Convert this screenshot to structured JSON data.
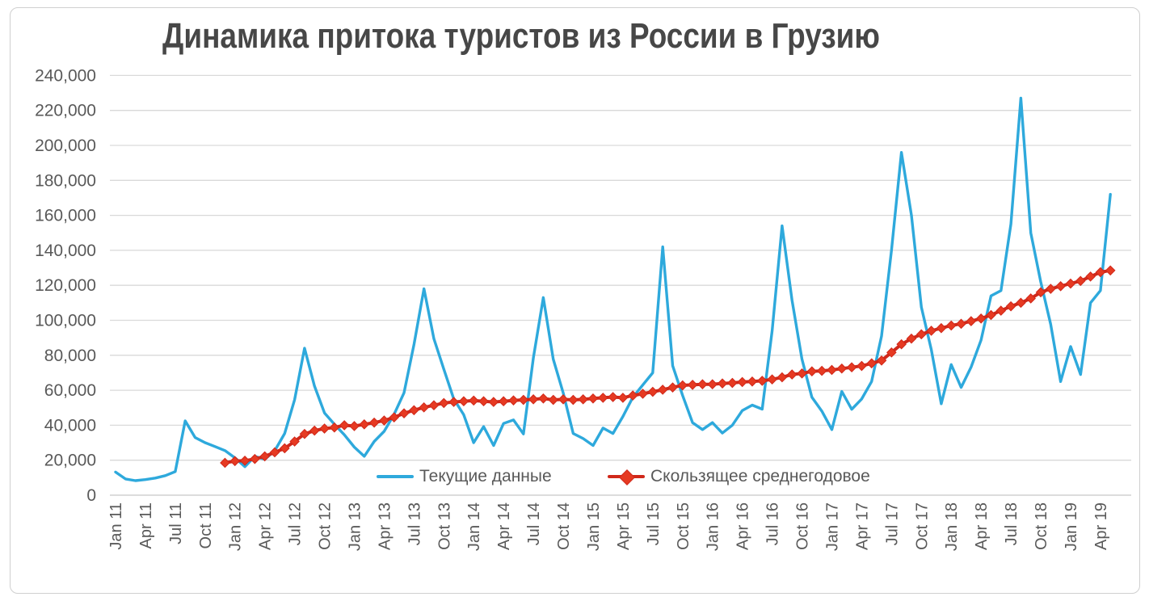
{
  "title": "Динамика притока туристов из России в Грузию",
  "chart_data": {
    "type": "line",
    "x_start": "Jan 2011",
    "x_end": "May 2019",
    "axis": {
      "y_ticks": [
        0,
        20000,
        40000,
        60000,
        80000,
        100000,
        120000,
        140000,
        160000,
        180000,
        200000,
        220000,
        240000
      ],
      "ylim": [
        0,
        240000
      ],
      "x_tick_step": 3,
      "x_tick_labels": [
        "Jan 11",
        "Apr 11",
        "Jul 11",
        "Oct 11",
        "Jan 12",
        "Apr 12",
        "Jul 12",
        "Oct 12",
        "Jan 13",
        "Apr 13",
        "Jul 13",
        "Oct 13",
        "Jan 14",
        "Apr 14",
        "Jul 14",
        "Oct 14",
        "Jan 15",
        "Apr 15",
        "Jul 15",
        "Oct 15",
        "Jan 16",
        "Apr 16",
        "Jul 16",
        "Oct 16",
        "Jan 17",
        "Apr 17",
        "Jul 17",
        "Oct 17",
        "Jan 18",
        "Apr 18",
        "Jul 18",
        "Oct 18",
        "Jan 19",
        "Apr 19"
      ],
      "grid": true
    },
    "legend_position": "inside-bottom",
    "series": [
      {
        "name": "Текущие данные",
        "type": "line",
        "color": "#2ea9dc",
        "start_index": 0,
        "values": [
          13200,
          9300,
          8300,
          8900,
          9800,
          11200,
          13500,
          42500,
          33000,
          30000,
          27800,
          25500,
          21400,
          16300,
          22200,
          20500,
          25400,
          35300,
          54600,
          84000,
          62400,
          47000,
          40500,
          34500,
          27500,
          22200,
          30700,
          36500,
          46200,
          58500,
          86300,
          118000,
          89400,
          72000,
          55000,
          46000,
          30000,
          39200,
          28400,
          41000,
          43000,
          35000,
          78500,
          113000,
          77800,
          58500,
          35300,
          32400,
          28400,
          38400,
          35300,
          45000,
          56000,
          63000,
          70000,
          142000,
          74000,
          57000,
          41500,
          37500,
          41500,
          35500,
          40000,
          48400,
          51500,
          49200,
          94000,
          154000,
          111500,
          77800,
          56000,
          48000,
          37500,
          59300,
          49100,
          55000,
          65000,
          91000,
          140000,
          196000,
          160000,
          107500,
          83200,
          52300,
          74700,
          61600,
          73200,
          88600,
          114000,
          117000,
          155000,
          227000,
          150000,
          122000,
          97800,
          65000,
          85000,
          69000,
          110000,
          117000,
          172000
        ]
      },
      {
        "name": "Скользящее среднегодовое",
        "type": "line-diamond-markers",
        "color": "#d0281a",
        "marker_color": "#e63a22",
        "start_index": 11,
        "values": [
          18500,
          19500,
          19700,
          20700,
          22200,
          24500,
          26800,
          30700,
          35000,
          36900,
          38100,
          38700,
          40000,
          39500,
          40500,
          41500,
          42700,
          44500,
          46800,
          48600,
          50200,
          51400,
          52700,
          53300,
          53700,
          54100,
          53700,
          53300,
          53700,
          54200,
          54500,
          54800,
          55300,
          54500,
          54800,
          54500,
          54800,
          55300,
          55700,
          56100,
          55700,
          57000,
          58000,
          59100,
          60300,
          61600,
          62800,
          63100,
          63400,
          63400,
          63900,
          64200,
          64700,
          65000,
          65400,
          66200,
          67400,
          69000,
          69600,
          70800,
          71100,
          71600,
          72400,
          73100,
          73900,
          75400,
          77000,
          81600,
          86300,
          89500,
          92000,
          94000,
          95500,
          97000,
          98000,
          99500,
          101000,
          103000,
          105500,
          108000,
          110000,
          112500,
          116000,
          118000,
          119500,
          121000,
          122500,
          125000,
          127500,
          128500
        ]
      }
    ]
  },
  "style": {
    "grid_color": "#d9d9d9",
    "axis_line_color": "#c6c6c6",
    "tick_label_color": "#595959",
    "title_color": "#474747",
    "background": "#ffffff"
  }
}
